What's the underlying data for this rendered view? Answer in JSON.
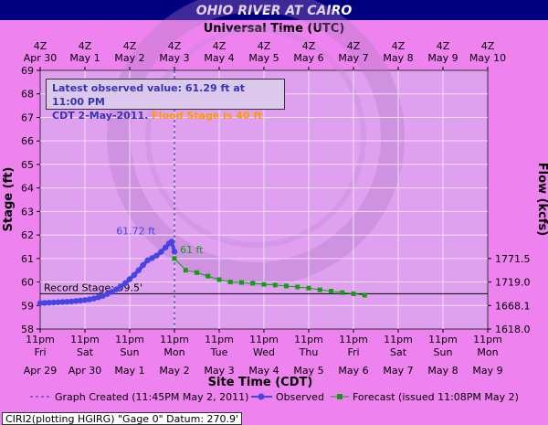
{
  "title": "OHIO RIVER AT CAIRO",
  "top_axis": {
    "label": "Universal Time (UTC)",
    "ticks": [
      {
        "hour": "4Z",
        "date": "Apr 30"
      },
      {
        "hour": "4Z",
        "date": "May 1"
      },
      {
        "hour": "4Z",
        "date": "May 2"
      },
      {
        "hour": "4Z",
        "date": "May 3"
      },
      {
        "hour": "4Z",
        "date": "May 4"
      },
      {
        "hour": "4Z",
        "date": "May 5"
      },
      {
        "hour": "4Z",
        "date": "May 6"
      },
      {
        "hour": "4Z",
        "date": "May 7"
      },
      {
        "hour": "4Z",
        "date": "May 8"
      },
      {
        "hour": "4Z",
        "date": "May 9"
      },
      {
        "hour": "4Z",
        "date": "May 10"
      }
    ]
  },
  "bottom_axis": {
    "label": "Site Time (CDT)",
    "ticks": [
      {
        "time": "11pm",
        "day": "Fri",
        "date": "Apr 29"
      },
      {
        "time": "11pm",
        "day": "Sat",
        "date": "Apr 30"
      },
      {
        "time": "11pm",
        "day": "Sun",
        "date": "May 1"
      },
      {
        "time": "11pm",
        "day": "Mon",
        "date": "May 2"
      },
      {
        "time": "11pm",
        "day": "Tue",
        "date": "May 3"
      },
      {
        "time": "11pm",
        "day": "Wed",
        "date": "May 4"
      },
      {
        "time": "11pm",
        "day": "Thu",
        "date": "May 5"
      },
      {
        "time": "11pm",
        "day": "Fri",
        "date": "May 6"
      },
      {
        "time": "11pm",
        "day": "Sat",
        "date": "May 7"
      },
      {
        "time": "11pm",
        "day": "Sun",
        "date": "May 8"
      },
      {
        "time": "11pm",
        "day": "Mon",
        "date": "May 9"
      }
    ]
  },
  "info": {
    "line1": "Latest observed value: 61.29 ft at 11:00 PM",
    "line2a": "CDT 2-May-2011.",
    "line2b": "Flood Stage is 40 ft"
  },
  "legend": {
    "graph_created": "Graph Created (11:45PM May 2, 2011)",
    "observed": "Observed",
    "forecast": "Forecast (issued 11:08PM May 2)"
  },
  "footer": "CIRI2(plotting HGIRG) \"Gage 0\" Datum: 270.9'",
  "colors": {
    "background": "#ee82ee",
    "plot_fill": "#e0a0f0",
    "title_bg": "#00007f",
    "observed": "#4545e5",
    "forecast": "#119f11",
    "record": "#000000",
    "flood": "#ff9900"
  },
  "chart_data": {
    "type": "line",
    "title": "OHIO RIVER AT CAIRO",
    "xlabel": "Site Time (CDT)",
    "ylabel": "Stage (ft)",
    "y2label": "Flow (kcfs)",
    "ylim": [
      58,
      69
    ],
    "xlim": [
      0,
      10
    ],
    "y_ticks": [
      58,
      59,
      60,
      61,
      62,
      63,
      64,
      65,
      66,
      67,
      68,
      69
    ],
    "y2_ticks": [
      {
        "stage": 58,
        "label": "1618.0"
      },
      {
        "stage": 59,
        "label": "1668.1"
      },
      {
        "stage": 60,
        "label": "1719.0"
      },
      {
        "stage": 61,
        "label": "1771.5"
      }
    ],
    "grid": true,
    "record_stage": {
      "value": 59.5,
      "label": "Record Stage:  59.5'"
    },
    "graph_created_x": 3.0,
    "annotations": [
      {
        "text": "61.72 ft",
        "x": 2.82,
        "y": 61.72,
        "series": "observed"
      },
      {
        "text": "61 ft",
        "x": 3.0,
        "y": 61.0,
        "series": "forecast"
      }
    ],
    "series": [
      {
        "name": "Observed",
        "points": [
          [
            0.0,
            59.1
          ],
          [
            0.1,
            59.11
          ],
          [
            0.2,
            59.12
          ],
          [
            0.3,
            59.13
          ],
          [
            0.4,
            59.14
          ],
          [
            0.5,
            59.15
          ],
          [
            0.6,
            59.16
          ],
          [
            0.7,
            59.17
          ],
          [
            0.8,
            59.19
          ],
          [
            0.9,
            59.21
          ],
          [
            1.0,
            59.23
          ],
          [
            1.1,
            59.26
          ],
          [
            1.2,
            59.3
          ],
          [
            1.3,
            59.35
          ],
          [
            1.4,
            59.41
          ],
          [
            1.5,
            59.49
          ],
          [
            1.6,
            59.58
          ],
          [
            1.7,
            59.69
          ],
          [
            1.8,
            59.81
          ],
          [
            1.9,
            59.95
          ],
          [
            2.0,
            60.12
          ],
          [
            2.1,
            60.3
          ],
          [
            2.2,
            60.5
          ],
          [
            2.3,
            60.72
          ],
          [
            2.4,
            60.92
          ],
          [
            2.5,
            61.02
          ],
          [
            2.6,
            61.12
          ],
          [
            2.7,
            61.28
          ],
          [
            2.8,
            61.47
          ],
          [
            2.88,
            61.64
          ],
          [
            2.94,
            61.72
          ],
          [
            3.0,
            61.29
          ]
        ]
      },
      {
        "name": "Forecast",
        "points": [
          [
            3.0,
            61.0
          ],
          [
            3.25,
            60.5
          ],
          [
            3.5,
            60.4
          ],
          [
            3.75,
            60.25
          ],
          [
            4.0,
            60.1
          ],
          [
            4.25,
            60.0
          ],
          [
            4.5,
            59.98
          ],
          [
            4.75,
            59.95
          ],
          [
            5.0,
            59.9
          ],
          [
            5.25,
            59.87
          ],
          [
            5.5,
            59.83
          ],
          [
            5.75,
            59.79
          ],
          [
            6.0,
            59.74
          ],
          [
            6.25,
            59.67
          ],
          [
            6.5,
            59.61
          ],
          [
            6.75,
            59.55
          ],
          [
            7.0,
            59.5
          ],
          [
            7.25,
            59.44
          ]
        ]
      }
    ]
  }
}
